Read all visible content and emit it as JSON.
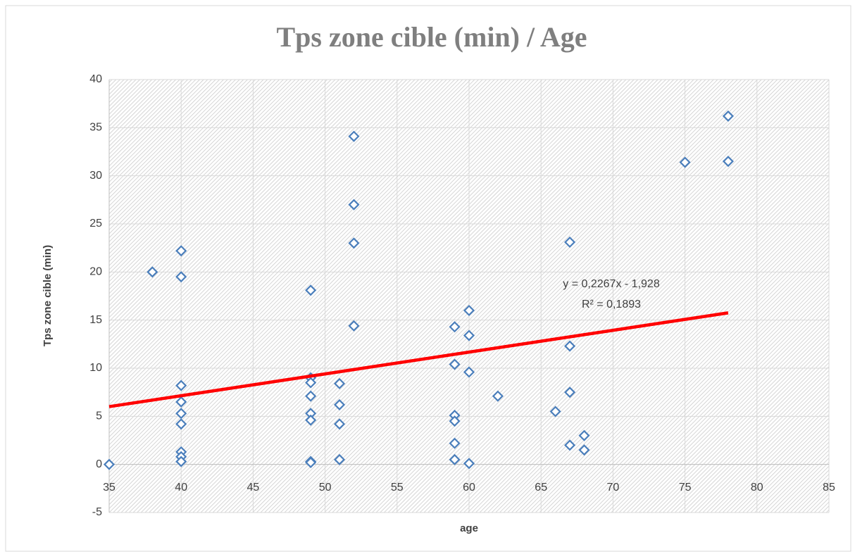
{
  "chart_data": {
    "type": "scatter",
    "title": "Tps zone cible (min) / Age",
    "x_label": "age",
    "y_label": "Tps zone cible (min)",
    "color": "#4a7ebb",
    "xlim": [
      35,
      85
    ],
    "xticks": [
      35,
      40,
      45,
      50,
      55,
      60,
      65,
      70,
      75,
      80,
      85
    ],
    "ylim": [
      -5,
      40
    ],
    "yticks": [
      -5,
      0,
      5,
      10,
      15,
      20,
      25,
      30,
      35,
      40
    ],
    "grid": true,
    "x": [
      35,
      38,
      40,
      40,
      40,
      40,
      40,
      40,
      40,
      40,
      40,
      49,
      49,
      49,
      49,
      49,
      49,
      49,
      49,
      51,
      51,
      51,
      51,
      52,
      52,
      52,
      52,
      59,
      59,
      59,
      59,
      59,
      59,
      60,
      60,
      60,
      60,
      62,
      66,
      67,
      67,
      67,
      67,
      68,
      68,
      75,
      78,
      78
    ],
    "values": [
      0,
      20,
      22.2,
      19.5,
      8.2,
      6.5,
      5.3,
      4.2,
      1.3,
      0.8,
      0.3,
      18.1,
      9,
      8.5,
      7.1,
      5.3,
      4.6,
      0.3,
      0.2,
      8.4,
      6.2,
      4.2,
      0.5,
      34.1,
      27,
      23,
      14.4,
      14.3,
      10.4,
      5.1,
      4.5,
      2.2,
      0.5,
      16,
      13.4,
      9.6,
      0.1,
      7.1,
      5.5,
      23.1,
      12.3,
      7.5,
      2,
      3,
      1.5,
      31.4,
      36.2,
      31.5
    ],
    "trendline": {
      "color": "#ff0000",
      "slope": 0.2267,
      "intercept": -1.928,
      "x": [
        35,
        78
      ],
      "equation": "y = 0,2267x - 1,928",
      "r2_label": "R² = 0,1893"
    }
  }
}
